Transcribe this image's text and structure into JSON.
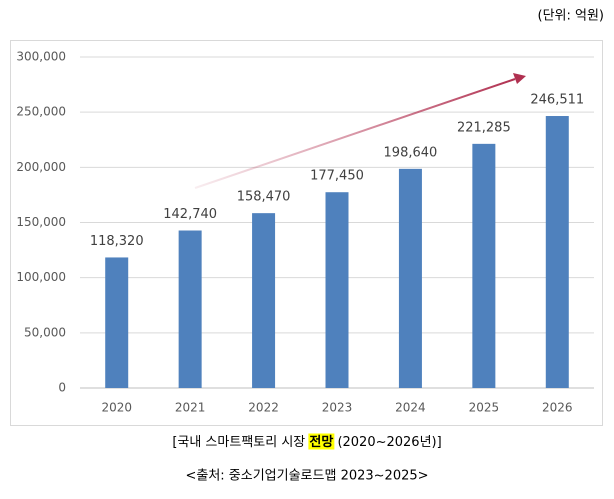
{
  "chart_data": {
    "type": "bar",
    "unit": "(단위: 억원)",
    "categories": [
      "2020",
      "2021",
      "2022",
      "2023",
      "2024",
      "2025",
      "2026"
    ],
    "values": [
      118320,
      142740,
      158470,
      177450,
      198640,
      221285,
      246511
    ],
    "value_labels": [
      "118,320",
      "142,740",
      "158,470",
      "177,450",
      "198,640",
      "221,285",
      "246,511"
    ],
    "color": "#4f81bd",
    "ylim": [
      0,
      300000
    ],
    "yticks": [
      0,
      {
        "value": 50000,
        "label": "50,000"
      },
      {
        "value": 100000,
        "label": "100,000"
      },
      {
        "value": 150000,
        "label": "150,000"
      },
      {
        "value": 200000,
        "label": "200,000"
      },
      {
        "value": 250000,
        "label": "250,000"
      },
      {
        "value": 300000,
        "label": "300,000"
      }
    ],
    "grid": true,
    "caption": [
      "[국내 스마트팩토리 시장 ",
      "전망",
      " (2020~2026년)]"
    ],
    "source": "<출처: 중소기업기술로드맵 2023~2025>"
  }
}
